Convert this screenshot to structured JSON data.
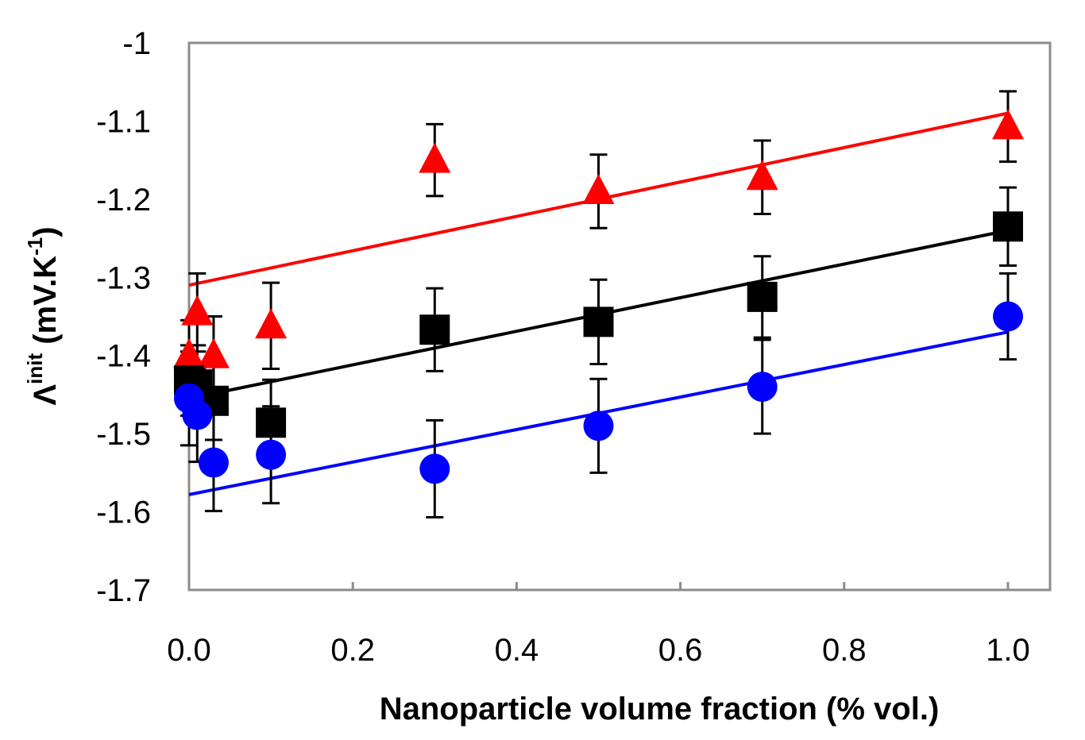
{
  "chart_data": {
    "type": "scatter",
    "xlabel": "Nanoparticle volume fraction (% vol.)",
    "ylabel": {
      "symbol": "Λ",
      "superscript": "init",
      "units_open": " (mV.K",
      "units_exp": "-1",
      "units_close": ")"
    },
    "xlim": [
      0.0,
      1.0
    ],
    "ylim": [
      -1.7,
      -1.0
    ],
    "xticks": [
      0.0,
      0.2,
      0.4,
      0.6,
      0.8,
      1.0
    ],
    "xtick_labels": [
      "0.0",
      "0.2",
      "0.4",
      "0.6",
      "0.8",
      "1.0"
    ],
    "yticks": [
      -1.0,
      -1.1,
      -1.2,
      -1.3,
      -1.4,
      -1.5,
      -1.6,
      -1.7
    ],
    "ytick_labels": [
      "-1",
      "-1.1",
      "-1.2",
      "-1.3",
      "-1.4",
      "-1.5",
      "-1.6",
      "-1.7"
    ],
    "grid": false,
    "series": [
      {
        "marker": "triangle",
        "color": "#ff0000",
        "points": [
          {
            "x": 0.0,
            "y": -1.4,
            "err": 0.045
          },
          {
            "x": 0.01,
            "y": -1.345,
            "err": 0.05
          },
          {
            "x": 0.03,
            "y": -1.4,
            "err": 0.05
          },
          {
            "x": 0.1,
            "y": -1.362,
            "err": 0.055
          },
          {
            "x": 0.3,
            "y": -1.15,
            "err": 0.046
          },
          {
            "x": 0.5,
            "y": -1.19,
            "err": 0.047
          },
          {
            "x": 0.7,
            "y": -1.172,
            "err": 0.047
          },
          {
            "x": 1.0,
            "y": -1.107,
            "err": 0.045
          }
        ],
        "fit": {
          "x0": 0.0,
          "y0": -1.31,
          "x1": 1.0,
          "y1": -1.09
        }
      },
      {
        "marker": "square",
        "color": "#000000",
        "points": [
          {
            "x": 0.0,
            "y": -1.432,
            "err": 0.045
          },
          {
            "x": 0.01,
            "y": -1.437,
            "err": 0.05
          },
          {
            "x": 0.03,
            "y": -1.458,
            "err": 0.05
          },
          {
            "x": 0.1,
            "y": -1.486,
            "err": 0.055
          },
          {
            "x": 0.3,
            "y": -1.367,
            "err": 0.053
          },
          {
            "x": 0.5,
            "y": -1.357,
            "err": 0.054
          },
          {
            "x": 0.7,
            "y": -1.325,
            "err": 0.052
          },
          {
            "x": 1.0,
            "y": -1.235,
            "err": 0.05
          }
        ],
        "fit": {
          "x0": 0.0,
          "y0": -1.455,
          "x1": 1.0,
          "y1": -1.24
        }
      },
      {
        "marker": "circle",
        "color": "#0000ff",
        "points": [
          {
            "x": 0.0,
            "y": -1.455,
            "err": 0.06
          },
          {
            "x": 0.01,
            "y": -1.476,
            "err": 0.06
          },
          {
            "x": 0.03,
            "y": -1.537,
            "err": 0.062
          },
          {
            "x": 0.1,
            "y": -1.527,
            "err": 0.062
          },
          {
            "x": 0.3,
            "y": -1.545,
            "err": 0.062
          },
          {
            "x": 0.5,
            "y": -1.49,
            "err": 0.06
          },
          {
            "x": 0.7,
            "y": -1.44,
            "err": 0.06
          },
          {
            "x": 1.0,
            "y": -1.35,
            "err": 0.055
          }
        ],
        "fit": {
          "x0": 0.0,
          "y0": -1.578,
          "x1": 1.0,
          "y1": -1.37
        }
      }
    ]
  }
}
